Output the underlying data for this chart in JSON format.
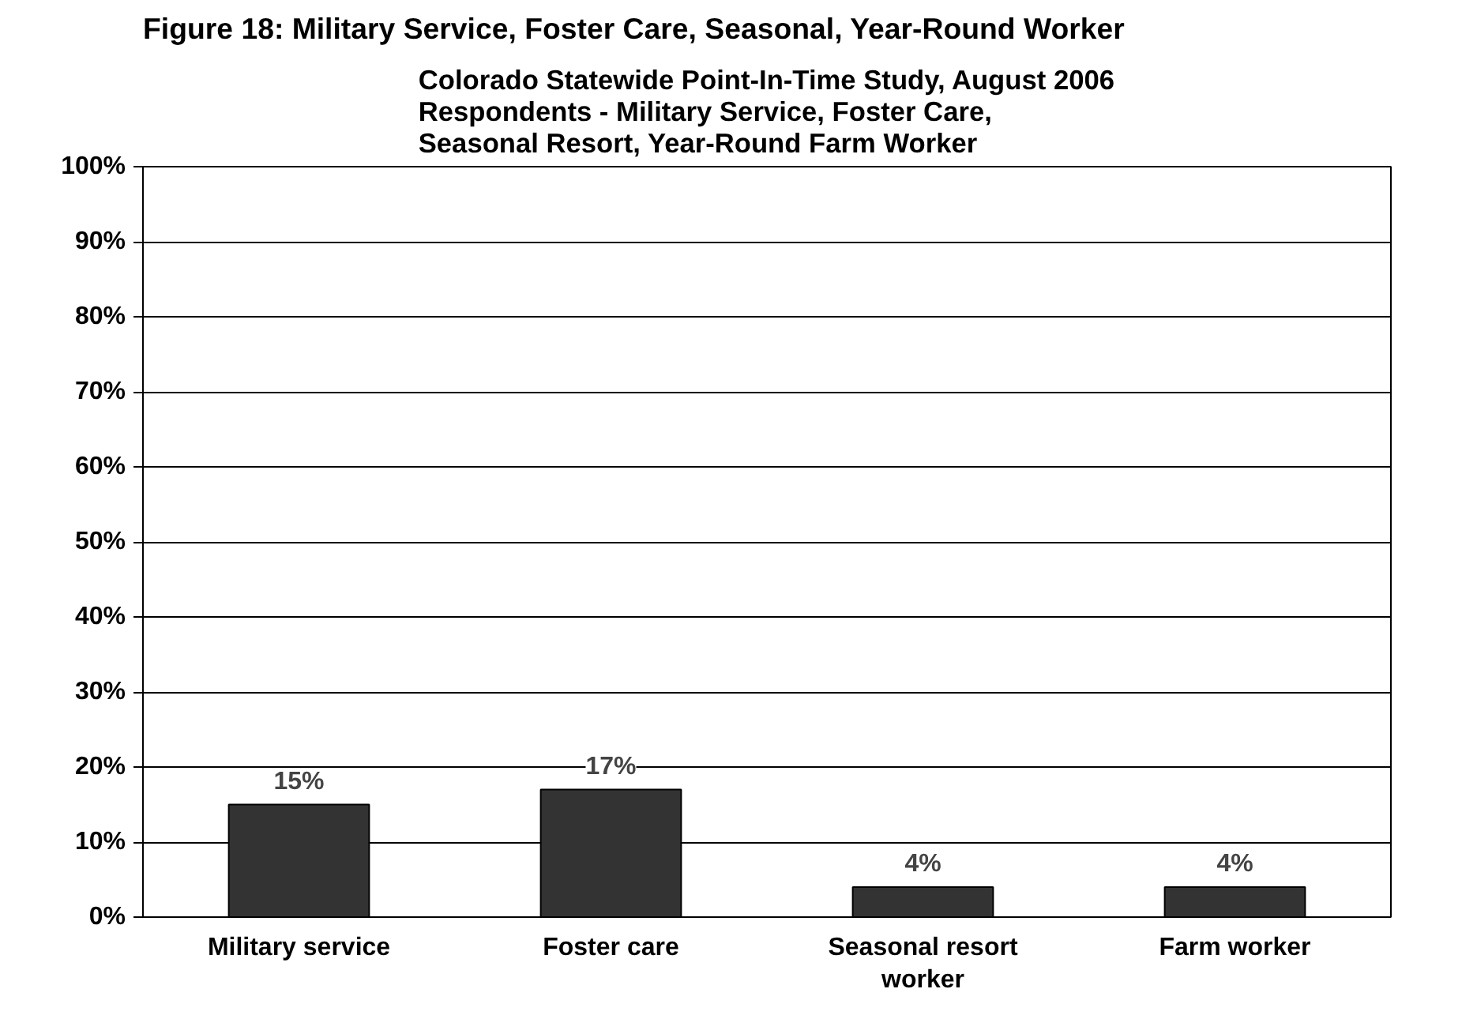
{
  "chart_data": {
    "type": "bar",
    "title": "Colorado Statewide Point-In-Time Study, August 2006\nRespondents - Military Service, Foster Care,\nSeasonal Resort, Year-Round Farm Worker",
    "annotations": [
      "Figure 18: Military Service, Foster Care, Seasonal, Year-Round Worker"
    ],
    "categories": [
      "Military service",
      "Foster care",
      "Seasonal resort\nworker",
      "Farm worker"
    ],
    "values": [
      15,
      17,
      4,
      4
    ],
    "value_labels": [
      "15%",
      "17%",
      "4%",
      "4%"
    ],
    "color": "#333333",
    "ylim": [
      0,
      100
    ],
    "yticks": [
      {
        "value": 0,
        "label": "0%"
      },
      {
        "value": 10,
        "label": "10%"
      },
      {
        "value": 20,
        "label": "20%"
      },
      {
        "value": 30,
        "label": "30%"
      },
      {
        "value": 40,
        "label": "40%"
      },
      {
        "value": 50,
        "label": "50%"
      },
      {
        "value": 60,
        "label": "60%"
      },
      {
        "value": 70,
        "label": "70%"
      },
      {
        "value": 80,
        "label": "80%"
      },
      {
        "value": 90,
        "label": "90%"
      },
      {
        "value": 100,
        "label": "100%"
      }
    ],
    "grid": "y"
  }
}
